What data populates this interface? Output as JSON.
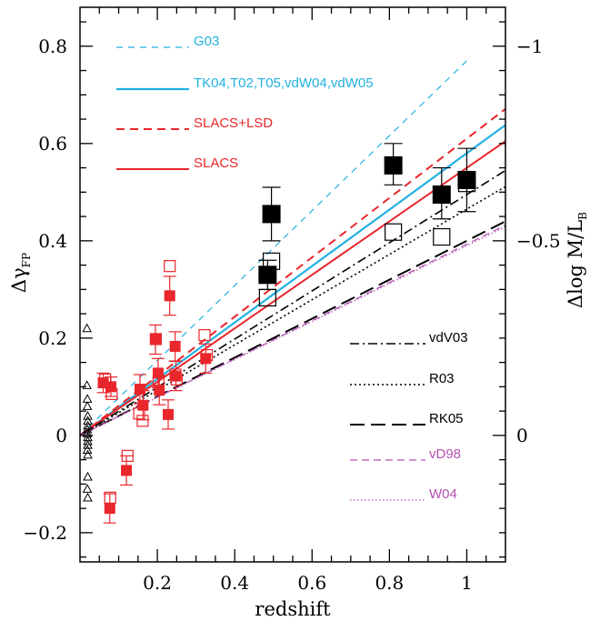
{
  "chart_data": {
    "type": "scatter",
    "xlabel": "redshift",
    "ylabel": "Δγ",
    "ylabel_sub": "FP",
    "y2label": "Δlog M/L",
    "y2label_sub": "B",
    "xlim": [
      0.0,
      1.1
    ],
    "ylim": [
      -0.26,
      0.88
    ],
    "x_ticks": [
      0.2,
      0.4,
      0.6,
      0.8,
      1
    ],
    "x_tick_labels": [
      "0.2",
      "0.4",
      "0.6",
      "0.8",
      "1"
    ],
    "y_ticks": [
      -0.2,
      0,
      0.2,
      0.4,
      0.6,
      0.8
    ],
    "y_tick_labels": [
      "−0.2",
      "0",
      "0.2",
      "0.4",
      "0.6",
      "0.8"
    ],
    "y2_ticks": [
      0.0,
      0.4,
      0.8
    ],
    "y2_tick_labels": [
      "0",
      "−0.5",
      "−1"
    ],
    "grid": false,
    "colors": {
      "cyan": "#22b1e0",
      "red": "#e8262b",
      "magenta": "#b450b0",
      "black": "#000000"
    },
    "lines": [
      {
        "name": "G03",
        "slope": 0.77,
        "color": "#22b1e0",
        "dash": "7 6",
        "width": 1.2,
        "x_end": 1.0,
        "legend": true
      },
      {
        "name": "TK04,T02,T05,vdW04,vdW05",
        "slope": 0.58,
        "color": "#22b1e0",
        "dash": "",
        "width": 2.2,
        "x_end": 1.1,
        "legend": true
      },
      {
        "name": "SLACS+LSD",
        "slope": 0.61,
        "color": "#e8262b",
        "dash": "9 6",
        "width": 2.0,
        "x_end": 1.1,
        "legend": true
      },
      {
        "name": "SLACS",
        "slope": 0.55,
        "color": "#e8262b",
        "dash": "",
        "width": 2.0,
        "x_end": 1.1,
        "legend": true
      },
      {
        "name": "vdV03",
        "slope": 0.495,
        "color": "#000000",
        "dash": "10 4 2 4",
        "width": 1.6,
        "x_end": 1.1,
        "legend": true
      },
      {
        "name": "R03",
        "slope": 0.465,
        "color": "#000000",
        "dash": "2 3",
        "width": 1.6,
        "x_end": 1.1,
        "legend": true
      },
      {
        "name": "RK05",
        "slope": 0.4,
        "color": "#000000",
        "dash": "16 7",
        "width": 2.0,
        "x_end": 1.1,
        "legend": true
      },
      {
        "name": "vD98",
        "slope": 0.393,
        "color": "#b450b0",
        "dash": "8 5",
        "width": 1.2,
        "x_end": 1.1,
        "legend": true
      },
      {
        "name": "W04",
        "slope": 0.39,
        "color": "#b450b0",
        "dash": "1.5 2.5",
        "width": 1.2,
        "x_end": 1.1,
        "legend": true
      }
    ],
    "legend_top": [
      "G03",
      "TK04,T02,T05,vdW04,vdW05",
      "SLACS+LSD",
      "SLACS"
    ],
    "legend_bottom": [
      "vdV03",
      "R03",
      "RK05",
      "vD98",
      "W04"
    ],
    "series": [
      {
        "kind": "red-filled",
        "points": [
          {
            "x": 0.06,
            "y": 0.108,
            "err": 0.02
          },
          {
            "x": 0.077,
            "y": -0.15,
            "err": 0.03
          },
          {
            "x": 0.08,
            "y": 0.1,
            "err": 0.02
          },
          {
            "x": 0.12,
            "y": -0.072,
            "err": 0.03
          },
          {
            "x": 0.155,
            "y": 0.095,
            "err": 0.03
          },
          {
            "x": 0.163,
            "y": 0.062,
            "err": 0.03
          },
          {
            "x": 0.195,
            "y": 0.197,
            "err": 0.03
          },
          {
            "x": 0.202,
            "y": 0.128,
            "err": 0.03
          },
          {
            "x": 0.205,
            "y": 0.093,
            "err": 0.03
          },
          {
            "x": 0.228,
            "y": 0.043,
            "err": 0.03
          },
          {
            "x": 0.232,
            "y": 0.287,
            "err": 0.04
          },
          {
            "x": 0.246,
            "y": 0.183,
            "err": 0.03
          },
          {
            "x": 0.248,
            "y": 0.122,
            "err": 0.03
          },
          {
            "x": 0.325,
            "y": 0.158,
            "err": 0.03
          }
        ]
      },
      {
        "kind": "red-open",
        "points": [
          {
            "x": 0.065,
            "y": 0.115
          },
          {
            "x": 0.078,
            "y": -0.128
          },
          {
            "x": 0.082,
            "y": 0.085
          },
          {
            "x": 0.123,
            "y": -0.042
          },
          {
            "x": 0.153,
            "y": 0.045
          },
          {
            "x": 0.162,
            "y": 0.03
          },
          {
            "x": 0.196,
            "y": 0.198
          },
          {
            "x": 0.203,
            "y": 0.11
          },
          {
            "x": 0.232,
            "y": 0.348
          },
          {
            "x": 0.247,
            "y": 0.125
          },
          {
            "x": 0.25,
            "y": 0.115
          },
          {
            "x": 0.322,
            "y": 0.206
          },
          {
            "x": 0.328,
            "y": 0.165
          }
        ]
      },
      {
        "kind": "black-filled",
        "points": [
          {
            "x": 0.485,
            "y": 0.33,
            "err_lo": 0.03,
            "err_hi": 0.03
          },
          {
            "x": 0.495,
            "y": 0.455,
            "err_lo": 0.055,
            "err_hi": 0.055
          },
          {
            "x": 0.81,
            "y": 0.555,
            "err_lo": 0.04,
            "err_hi": 0.045
          },
          {
            "x": 0.935,
            "y": 0.495,
            "err_lo": 0.05,
            "err_hi": 0.055
          },
          {
            "x": 1.0,
            "y": 0.525,
            "err_lo": 0.065,
            "err_hi": 0.065
          }
        ]
      },
      {
        "kind": "black-open",
        "points": [
          {
            "x": 0.485,
            "y": 0.283
          },
          {
            "x": 0.495,
            "y": 0.358
          },
          {
            "x": 0.81,
            "y": 0.418
          },
          {
            "x": 0.935,
            "y": 0.408
          },
          {
            "x": 1.0,
            "y": 0.518
          }
        ]
      },
      {
        "kind": "black-triangle",
        "points": [
          {
            "x": 0.018,
            "y": 0.22
          },
          {
            "x": 0.018,
            "y": 0.103
          },
          {
            "x": 0.019,
            "y": 0.075
          },
          {
            "x": 0.019,
            "y": 0.06
          },
          {
            "x": 0.02,
            "y": 0.04
          },
          {
            "x": 0.02,
            "y": 0.03
          },
          {
            "x": 0.02,
            "y": 0.02
          },
          {
            "x": 0.019,
            "y": 0.012
          },
          {
            "x": 0.019,
            "y": 0.004
          },
          {
            "x": 0.02,
            "y": -0.004
          },
          {
            "x": 0.02,
            "y": -0.012
          },
          {
            "x": 0.02,
            "y": -0.02
          },
          {
            "x": 0.019,
            "y": -0.03
          },
          {
            "x": 0.02,
            "y": -0.04
          },
          {
            "x": 0.02,
            "y": -0.085
          },
          {
            "x": 0.019,
            "y": -0.11
          },
          {
            "x": 0.02,
            "y": -0.128
          }
        ]
      }
    ]
  }
}
